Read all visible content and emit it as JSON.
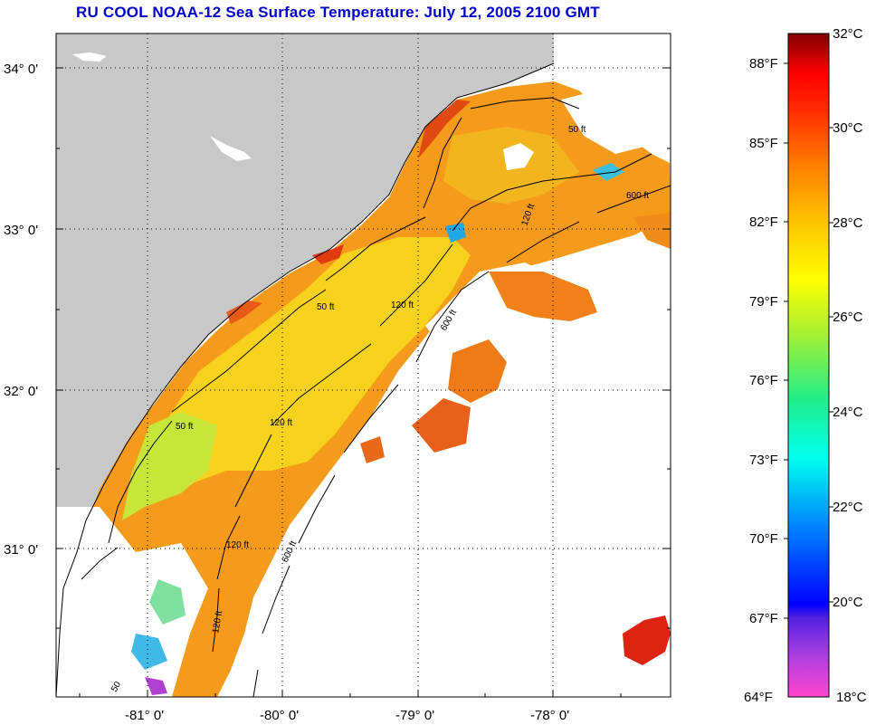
{
  "header": {
    "title": "RU COOL  NOAA-12  Sea Surface Temperature:  July 12, 2005 2100 GMT"
  },
  "map": {
    "lat_labels": [
      "34° 0'",
      "33° 0'",
      "32° 0'",
      "31° 0'"
    ],
    "lon_labels": [
      "-81° 0'",
      "-80° 0'",
      "-79° 0'",
      "-78° 0'"
    ],
    "contour_labels": [
      "50 ft",
      "50 ft",
      "120 ft",
      "120 ft",
      "120 ft",
      "600 ft",
      "600 ft",
      "600 ft",
      "50 ft",
      "120 ft",
      "120 ft",
      "50"
    ],
    "colors": {
      "land": "#c8c8c8",
      "cloud": "#ffffff",
      "warm_water": "#f59a1a",
      "hot_water": "#e02010",
      "mid_water": "#f7d21c",
      "cool_water": "#bff03a",
      "cold_water": "#22c8e0"
    }
  },
  "colorbar": {
    "fahrenheit_labels": [
      "88°F",
      "85°F",
      "82°F",
      "79°F",
      "76°F",
      "73°F",
      "70°F",
      "67°F",
      "64°F"
    ],
    "celsius_labels": [
      "32°C",
      "30°C",
      "28°C",
      "26°C",
      "24°C",
      "22°C",
      "20°C",
      "18°C"
    ],
    "range_c": [
      18,
      32
    ],
    "range_f": [
      64,
      90
    ]
  }
}
